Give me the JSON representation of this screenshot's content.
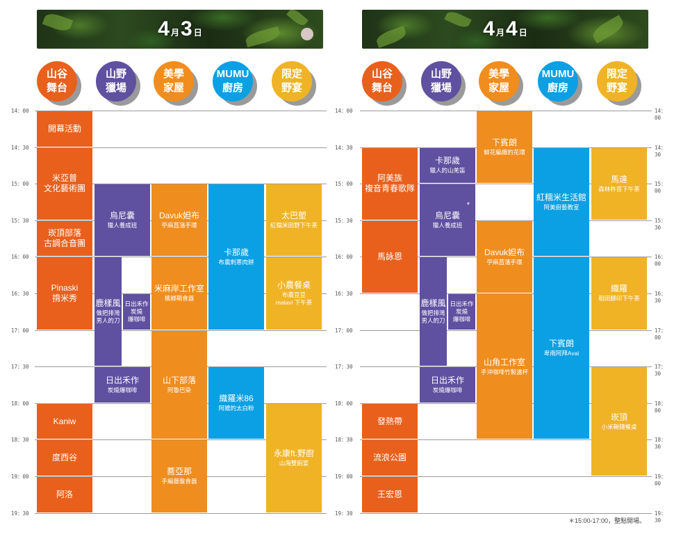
{
  "days": [
    {
      "date_day": "4",
      "date_month_unit": "月",
      "date_date": "3",
      "date_date_unit": "日",
      "venues": [
        "山谷\n舞台",
        "山野\n獵場",
        "美學\n家屋",
        "MUMU\n廚房",
        "限定\n野宴"
      ],
      "times": [
        "14：00",
        "14：30",
        "15：00",
        "15：30",
        "16：00",
        "16：30",
        "17：00",
        "17：30",
        "18：00",
        "18：30",
        "19：00",
        "19：30"
      ],
      "events": [
        {
          "col": 0,
          "start": 0,
          "end": 1,
          "title": "開幕活動",
          "sub": ""
        },
        {
          "col": 0,
          "start": 1,
          "end": 3,
          "title": "米亞普\n文化藝術團",
          "sub": ""
        },
        {
          "col": 0,
          "start": 3,
          "end": 4,
          "title": "崁頂部落\n古調合音團",
          "sub": ""
        },
        {
          "col": 0,
          "start": 4,
          "end": 6,
          "title": "Pinaski\n揹米秀",
          "sub": ""
        },
        {
          "col": 0,
          "start": 8,
          "end": 9,
          "title": "Kaniw",
          "sub": ""
        },
        {
          "col": 0,
          "start": 9,
          "end": 10,
          "title": "度西谷",
          "sub": ""
        },
        {
          "col": 0,
          "start": 10,
          "end": 11,
          "title": "阿洛",
          "sub": ""
        },
        {
          "col": 1,
          "start": 2,
          "end": 4,
          "title": "烏尼囊",
          "sub": "獵人養成班"
        },
        {
          "col": 1,
          "start": 4,
          "end": 7,
          "title": "鹿樣風",
          "sub": "做把排灣\n男人的刀",
          "half": "left"
        },
        {
          "col": 1,
          "start": 5,
          "end": 6,
          "title": "",
          "sub": "日出禾作\n炭燒\n爆咖啡",
          "half": "right"
        },
        {
          "col": 1,
          "start": 7,
          "end": 8,
          "title": "日出禾作",
          "sub": "炭燒爆咖啡"
        },
        {
          "col": 2,
          "start": 2,
          "end": 4,
          "title": "Davuk妲布",
          "sub": "苧麻菖蒲手環"
        },
        {
          "col": 2,
          "start": 4,
          "end": 6,
          "title": "米麻岸工作室",
          "sub": "檳榔鞘食器"
        },
        {
          "col": 2,
          "start": 6,
          "end": 9,
          "title": "山下部落",
          "sub": "阿魯巴染"
        },
        {
          "col": 2,
          "start": 9,
          "end": 11,
          "title": "蕎亞那",
          "sub": "手編藤盤食器"
        },
        {
          "col": 3,
          "start": 2,
          "end": 6,
          "title": "卡那歲",
          "sub": "布農刺蔥肉餅"
        },
        {
          "col": 3,
          "start": 7,
          "end": 9,
          "title": "織羅米86",
          "sub": "阿嬤的太白粉"
        },
        {
          "col": 4,
          "start": 2,
          "end": 4,
          "title": "太巴塱",
          "sub": "紅糯米田野下午茶"
        },
        {
          "col": 4,
          "start": 4,
          "end": 6,
          "title": "小農餐桌",
          "sub": "布農豆豆\nmalavi 下午茶"
        },
        {
          "col": 4,
          "start": 8,
          "end": 11,
          "title": "永康ft.野廚",
          "sub": "山海雙廚宴"
        }
      ]
    },
    {
      "date_day": "4",
      "date_month_unit": "月",
      "date_date": "4",
      "date_date_unit": "日",
      "venues": [
        "山谷\n舞台",
        "山野\n獵場",
        "美學\n家屋",
        "MUMU\n廚房",
        "限定\n野宴"
      ],
      "times": [
        "14：00",
        "14：30",
        "15：00",
        "15：30",
        "16：00",
        "16：30",
        "17：00",
        "17：30",
        "18：00",
        "18：30",
        "19：00",
        "19：30"
      ],
      "events": [
        {
          "col": 0,
          "start": 1,
          "end": 3,
          "title": "阿美族\n複音青春歌隊",
          "sub": ""
        },
        {
          "col": 0,
          "start": 3,
          "end": 5,
          "title": "馬詠恩",
          "sub": ""
        },
        {
          "col": 0,
          "start": 8,
          "end": 9,
          "title": "發熱帶",
          "sub": ""
        },
        {
          "col": 0,
          "start": 9,
          "end": 10,
          "title": "流浪公園",
          "sub": ""
        },
        {
          "col": 0,
          "start": 10,
          "end": 11,
          "title": "王宏恩",
          "sub": ""
        },
        {
          "col": 1,
          "start": 1,
          "end": 2,
          "title": "卡那歲",
          "sub": "獵人的山羌笛"
        },
        {
          "col": 1,
          "start": 2,
          "end": 4,
          "title": "烏尼囊",
          "sub": "獵人養成班",
          "star": "*"
        },
        {
          "col": 1,
          "start": 4,
          "end": 7,
          "title": "鹿樣風",
          "sub": "做把排灣\n男人的刀",
          "half": "left"
        },
        {
          "col": 1,
          "start": 5,
          "end": 6,
          "title": "",
          "sub": "日出禾作\n炭燒\n爆咖啡",
          "half": "right"
        },
        {
          "col": 1,
          "start": 7,
          "end": 8,
          "title": "日出禾作",
          "sub": "炭燒爆咖啡"
        },
        {
          "col": 2,
          "start": 0,
          "end": 2,
          "title": "下賓朗",
          "sub": "鮮花編織的花環"
        },
        {
          "col": 2,
          "start": 3,
          "end": 5,
          "title": "Davuk妲布",
          "sub": "苧麻菖蒲手環"
        },
        {
          "col": 2,
          "start": 5,
          "end": 9,
          "title": "山角工作室",
          "sub": "手沖咖啡竹製濾杯"
        },
        {
          "col": 3,
          "start": 1,
          "end": 4,
          "title": "紅糯米生活館",
          "sub": "阿美廚藝教室"
        },
        {
          "col": 3,
          "start": 4,
          "end": 9,
          "title": "下賓朗",
          "sub": "卑南阿拜Avai"
        },
        {
          "col": 4,
          "start": 1,
          "end": 3,
          "title": "馬遠",
          "sub": "森林杵音下午茶"
        },
        {
          "col": 4,
          "start": 4,
          "end": 6,
          "title": "織羅",
          "sub": "稻田腳印下午茶"
        },
        {
          "col": 4,
          "start": 7,
          "end": 10,
          "title": "崁頂",
          "sub": "小米鞦韆餐桌"
        }
      ]
    }
  ],
  "footnote": "＊15:00-17:00，整點開場。",
  "colors": {
    "venues": [
      "#e8601c",
      "#5f50a0",
      "#ef8d1e",
      "#0ba0e3",
      "#f0b326"
    ]
  }
}
